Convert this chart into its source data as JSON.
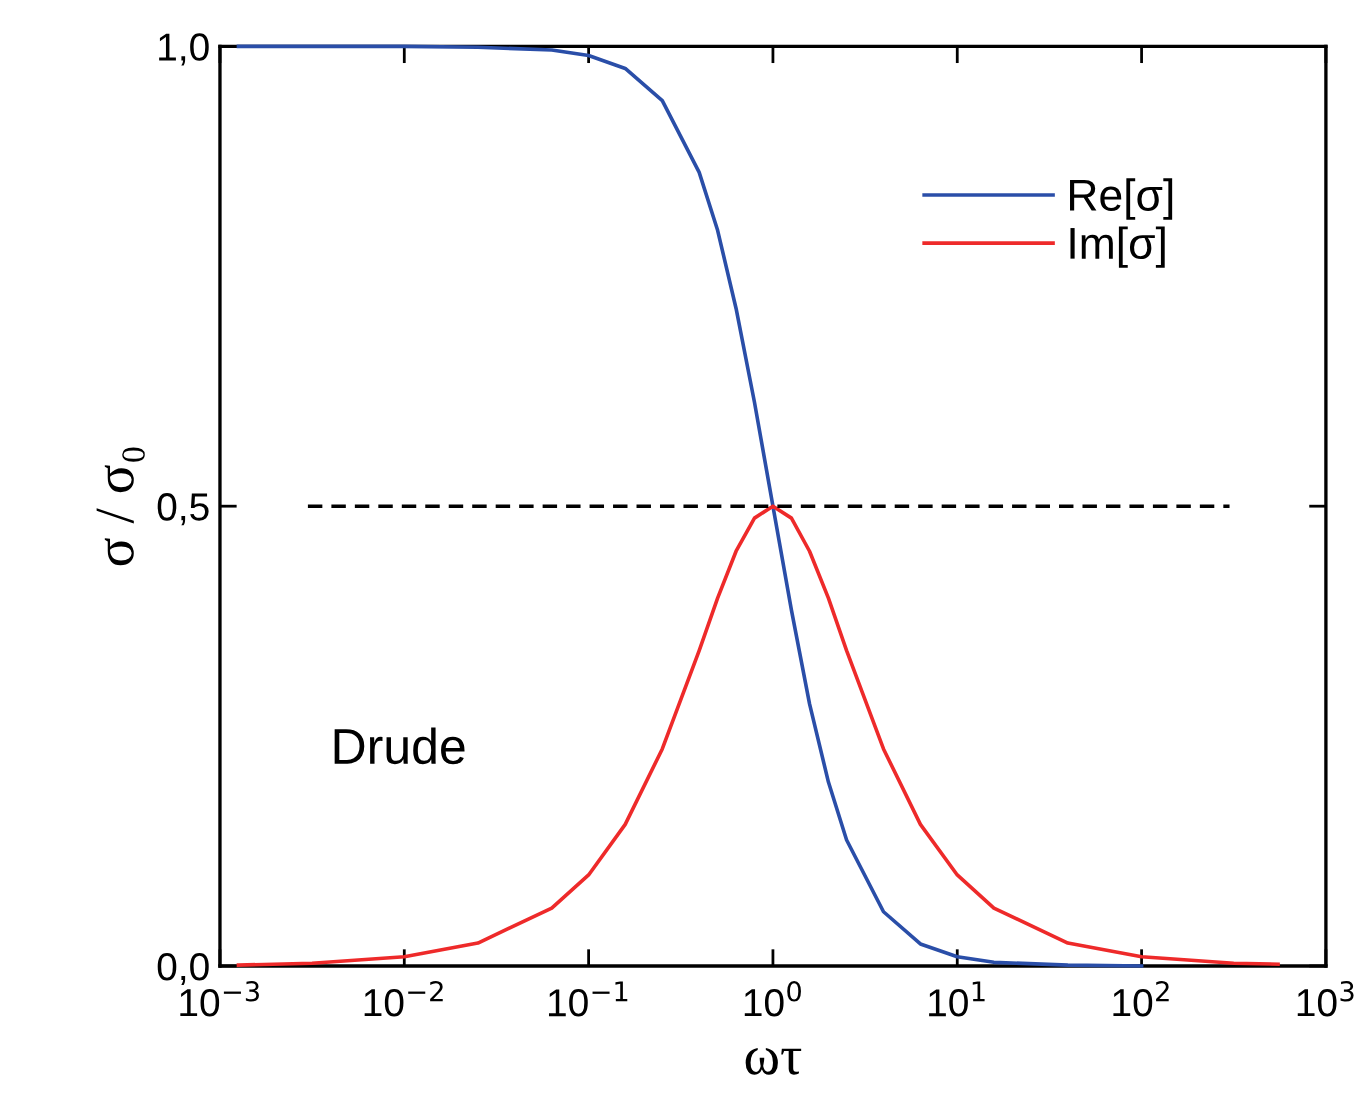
{
  "chart_data": {
    "type": "line",
    "xlabel": "ωτ",
    "ylabel": "σ / σ₀",
    "log": "x",
    "xlim": [
      0.001,
      1000
    ],
    "ylim": [
      0,
      1
    ],
    "xticks": [
      {
        "value": 0.001,
        "label": "10$^{−3}$"
      },
      {
        "value": 0.01,
        "label": "10$^{−2}$"
      },
      {
        "value": 0.1,
        "label": "10$^{−1}$"
      },
      {
        "value": 1,
        "label": "10$^{0}$"
      },
      {
        "value": 10,
        "label": "10$^{1}$"
      },
      {
        "value": 100,
        "label": "10$^{2}$"
      },
      {
        "value": 1000,
        "label": "10$^{3}$"
      }
    ],
    "yticks": [
      {
        "value": 0,
        "label": "0,0"
      },
      {
        "value": 0.5,
        "label": "0,5"
      },
      {
        "value": 1,
        "label": "1,0"
      }
    ],
    "grid": false,
    "legend": "top right",
    "marker": "none",
    "annotations": [
      "Drude"
    ],
    "series": [
      {
        "name": "Re[σ]",
        "color": "#2a4ea8",
        "line_style": "solid",
        "x": [
          0.00126,
          0.00316,
          0.01,
          0.0251,
          0.0631,
          0.1,
          0.158,
          0.251,
          0.398,
          0.501,
          0.631,
          0.794,
          1,
          1.26,
          1.58,
          2.0,
          2.51,
          3.98,
          6.31,
          10,
          15.8,
          39.8,
          100
        ],
        "values": [
          1.0,
          1.0,
          1.0,
          0.999,
          0.996,
          0.99,
          0.976,
          0.941,
          0.863,
          0.8,
          0.715,
          0.613,
          0.5,
          0.387,
          0.285,
          0.2,
          0.137,
          0.059,
          0.024,
          0.01,
          0.004,
          0.001,
          0
        ]
      },
      {
        "name": "Im[σ]",
        "color": "#ee2a2a",
        "line_style": "solid",
        "x": [
          0.00126,
          0.00316,
          0.01,
          0.0251,
          0.0631,
          0.1,
          0.158,
          0.251,
          0.398,
          0.501,
          0.631,
          0.794,
          1,
          1.26,
          1.58,
          2.0,
          2.51,
          3.98,
          6.31,
          10,
          15.8,
          39.8,
          100,
          316,
          550
        ],
        "values": [
          0.001,
          0.003,
          0.01,
          0.025,
          0.063,
          0.099,
          0.154,
          0.236,
          0.343,
          0.4,
          0.451,
          0.487,
          0.5,
          0.487,
          0.451,
          0.4,
          0.343,
          0.236,
          0.154,
          0.099,
          0.063,
          0.025,
          0.01,
          0.003,
          0.002
        ]
      },
      {
        "color": "#000000",
        "line_style": "dashed",
        "x": [
          0.003,
          300
        ],
        "values": [
          0.5,
          0.5
        ]
      }
    ]
  }
}
